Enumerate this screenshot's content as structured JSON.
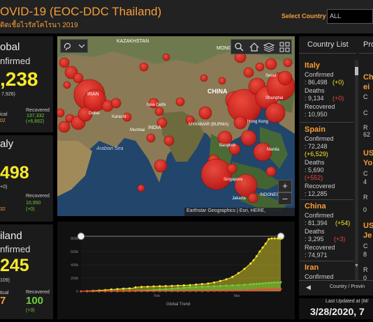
{
  "header": {
    "title": "OVID-19 (EOC-DDC Thailand)",
    "subtitle": "ดิดเชื้อไวรัสโคโรนา 2019",
    "select_label": "Select Country",
    "select_value": "ALL"
  },
  "global": {
    "title": "obal",
    "confirmed_label": "nfirmed",
    "confirmed": ",238",
    "confirmed_delta": "7,926)",
    "critical_label": "ical",
    "critical": "02",
    "recovered_label": "Recovered",
    "recovered": "137,332",
    "recovered_delta": "(+6,662)"
  },
  "italy_box": {
    "title": "aly",
    "confirmed": "498",
    "confirmed_delta": "+0)",
    "critical": "32",
    "recovered_label": "Recovered",
    "recovered": "10,950",
    "recovered_delta": "(+0)"
  },
  "thailand_box": {
    "title": "iland",
    "confirmed_label": "nfirmed",
    "confirmed": "245",
    "confirmed_delta": "109)",
    "critical_label": "tical",
    "critical": "7",
    "recovered_label": "Recovered",
    "recovered": "100",
    "recovered_delta": "(+3)"
  },
  "map": {
    "labels": [
      "KAZAKHSTAN",
      "MONGO",
      "CHINA",
      "IRAN",
      "INDIA",
      "Arabian Sea",
      "MYANMAR (BURMA)",
      "Hong Kong",
      "Bangkok",
      "Singapore",
      "INDONESI",
      "Jakarta",
      "Dubai",
      "Karachi",
      "New Delhi",
      "Mumbai",
      "Seoul",
      "Shanghai",
      "Manila"
    ],
    "attribution": "Earthstar Geographics | Esri, HERE,",
    "zoom_in": "+",
    "zoom_out": "–"
  },
  "chart_data": {
    "type": "area",
    "title": "",
    "xlabel": "Global Trend",
    "ylabel": "",
    "x_ticks": [
      "Feb",
      "Mar"
    ],
    "y_ticks": [
      "800k",
      "600k",
      "400k",
      "200k",
      "0"
    ],
    "ylim": [
      0,
      800000
    ],
    "x": [
      0,
      1,
      2,
      3,
      4,
      5,
      6,
      7,
      8,
      9,
      10,
      11,
      12,
      13,
      14,
      15,
      16,
      17,
      18,
      19,
      20,
      21,
      22,
      23,
      24,
      25,
      26,
      27,
      28,
      29,
      30,
      31,
      32,
      33,
      34,
      35,
      36,
      37,
      38,
      39,
      40,
      41,
      42,
      43,
      44,
      45,
      46,
      47,
      48,
      49,
      50,
      51,
      52,
      53,
      54,
      55,
      56,
      57,
      58,
      59,
      60,
      61,
      62,
      63,
      64,
      65,
      66
    ],
    "series": [
      {
        "color": "#f7e92c",
        "values": [
          0,
          2000,
          4000,
          6000,
          8000,
          10000,
          14000,
          17000,
          20000,
          24000,
          28000,
          31000,
          35000,
          38000,
          41000,
          43000,
          45000,
          47000,
          60000,
          64000,
          67000,
          69000,
          71000,
          73000,
          75000,
          76000,
          78000,
          79000,
          80000,
          81000,
          83000,
          85000,
          87000,
          89000,
          91000,
          93000,
          95000,
          98000,
          102000,
          106000,
          110000,
          114000,
          119000,
          126000,
          134000,
          145000,
          157000,
          168000,
          182000,
          198000,
          219000,
          245000,
          275000,
          305000,
          340000,
          380000,
          420000,
          470000,
          530000,
          600000,
          660000,
          720000,
          790000,
          820000,
          860000,
          900000,
          940000
        ]
      },
      {
        "color": "#6fcf3a",
        "values": [
          0,
          0,
          0,
          0,
          0,
          100,
          200,
          300,
          500,
          700,
          900,
          1200,
          1500,
          2000,
          2500,
          3000,
          4000,
          5000,
          6000,
          8000,
          10000,
          12000,
          15000,
          18000,
          20000,
          23000,
          27000,
          30000,
          33000,
          36000,
          40000,
          44000,
          48000,
          52000,
          56000,
          60000,
          62000,
          64000,
          66000,
          68000,
          70000,
          72000,
          74000,
          75000,
          77000,
          79000,
          81000,
          83000,
          85000,
          87000,
          90000,
          92000,
          95000,
          98000,
          100000,
          103000,
          107000,
          110000,
          113000,
          116000,
          120000,
          124000,
          128000,
          131000,
          134000,
          136000,
          137000
        ]
      },
      {
        "color": "#e8463d",
        "values": [
          0,
          0,
          0,
          0,
          0,
          100,
          200,
          300,
          400,
          500,
          600,
          800,
          1000,
          1100,
          1300,
          1400,
          1500,
          1600,
          1700,
          1800,
          1900,
          2000,
          2100,
          2300,
          2500,
          2700,
          2800,
          2900,
          3000,
          3100,
          3200,
          3300,
          3400,
          3500,
          3600,
          3700,
          3800,
          3900,
          4100,
          4300,
          4500,
          4700,
          5000,
          5400,
          5800,
          6400,
          7000,
          7500,
          8000,
          9000,
          10000,
          11000,
          12000,
          13000,
          14500,
          16000,
          17500,
          19000,
          21000,
          23000,
          25000,
          27000,
          29000,
          31000,
          32000,
          33000,
          34000
        ]
      }
    ]
  },
  "country_list": {
    "tab_countries": "Country List",
    "tab_provinces": "Pro",
    "entries": [
      {
        "name": "Italy",
        "confirmed_label": "Confirmed",
        "confirmed": ": 86,498",
        "confirmed_delta": "(+0)",
        "deaths_label": "Deaths",
        "deaths": ": 9,134",
        "deaths_delta": "(+0)",
        "recovered_label": "Recovered",
        "recovered": ": 10,950"
      },
      {
        "name": "Spain",
        "confirmed_label": "Confirmed",
        "confirmed": ": 72,248",
        "confirmed_delta": "(+6,529)",
        "deaths_label": "Deaths",
        "deaths": ": 5,690",
        "deaths_delta": "(+552)",
        "recovered_label": "Recovered",
        "recovered": ": 12,285"
      },
      {
        "name": "China",
        "confirmed_label": "Confirmed",
        "confirmed": ": 81,394",
        "confirmed_delta": "(+54)",
        "deaths_label": "Deaths",
        "deaths": ": 3,295",
        "deaths_delta": "(+3)",
        "recovered_label": "Recovered",
        "recovered": ": 74,971"
      },
      {
        "name": "Iran",
        "confirmed_label": "Confirmed"
      }
    ],
    "provinces": [
      {
        "name": "Ch",
        "line2": "ei",
        "rows": [
          "C",
          "C",
          "R",
          "62"
        ]
      },
      {
        "name": "US",
        "line2": "Yo",
        "rows": [
          "C",
          "4",
          "R",
          "0"
        ]
      },
      {
        "name": "US",
        "line2": "Je",
        "rows": [
          "C",
          "8",
          "R",
          "0"
        ]
      }
    ],
    "footer_label": "Country / Provin",
    "last_updated_label": "Last Updated at (M/",
    "last_updated": "3/28/2020, 7"
  }
}
